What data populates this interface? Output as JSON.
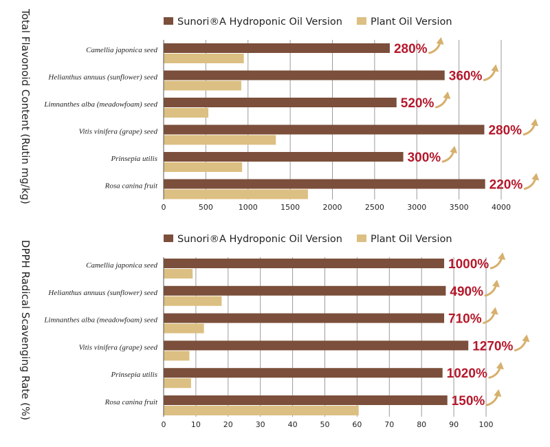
{
  "colors": {
    "series_a": "#7b4f3b",
    "series_b": "#dcbf82",
    "pct": "#b5182b",
    "arrow": "#d6b06d",
    "grid": "#9a9a9a"
  },
  "chart_data": [
    {
      "type": "bar",
      "orientation": "horizontal",
      "ylabel": "Total Flavonoid Content (Rutin mg/kg)",
      "categories": [
        "Camellia japonica seed",
        "Helianthus annuus (sunflower) seed",
        "Limnanthes alba (meadowfoam) seed",
        "Vitis vinifera (grape) seed",
        "Prinsepia utilis",
        "Rosa canina fruit"
      ],
      "series": [
        {
          "name": "Sunori®A  Hydroponic Oil Version",
          "values": [
            2680,
            3330,
            2760,
            3800,
            2840,
            3810
          ]
        },
        {
          "name": "Plant Oil Version",
          "values": [
            950,
            920,
            530,
            1330,
            930,
            1710
          ]
        }
      ],
      "increase_labels": [
        "280%",
        "360%",
        "520%",
        "280%",
        "300%",
        "220%"
      ],
      "xlim": [
        0,
        4000
      ],
      "xticks": [
        0,
        500,
        1000,
        1500,
        2000,
        2500,
        3000,
        3500,
        4000
      ],
      "grid": true,
      "legend": "top"
    },
    {
      "type": "bar",
      "orientation": "horizontal",
      "ylabel": "DPPH Radical Scavenging Rate (%)",
      "categories": [
        "Camellia japonica seed",
        "Helianthus annuus (sunflower) seed",
        "Limnanthes alba (meadowfoam) seed",
        "Vitis vinifera (grape) seed",
        "Prinsepia utilis",
        "Rosa canina fruit"
      ],
      "series": [
        {
          "name": "Sunori®A  Hydroponic Oil Version",
          "values": [
            87,
            87.5,
            87,
            94.5,
            86.5,
            88
          ]
        },
        {
          "name": "Plant Oil Version",
          "values": [
            9,
            18,
            12.5,
            8,
            8.5,
            60.5
          ]
        }
      ],
      "increase_labels": [
        "1000%",
        "490%",
        "710%",
        "1270%",
        "1020%",
        "150%"
      ],
      "xlim": [
        0,
        100
      ],
      "xticks": [
        0,
        10,
        20,
        30,
        40,
        50,
        60,
        70,
        80,
        90,
        100
      ],
      "grid": true,
      "legend": "top"
    }
  ]
}
